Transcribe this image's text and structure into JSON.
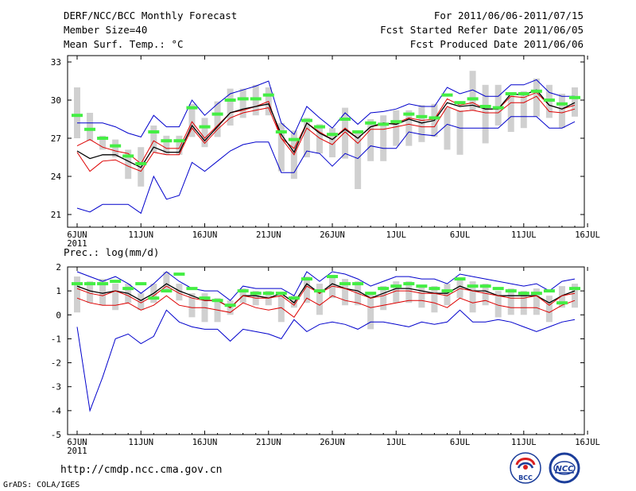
{
  "header": {
    "title": "DERF/NCC/BCC Monthly Forecast",
    "member_size": "Member Size=40",
    "variable": "Mean Surf. Temp.: °C",
    "period": "For 2011/06/06-2011/07/15",
    "start_date": "Fcst Started Refer Date 2011/06/05",
    "produced_date": "Fcst Produced Date 2011/06/06"
  },
  "footer": {
    "url": "http://cmdp.ncc.cma.gov.cn",
    "credit": "GrADS: COLA/IGES",
    "logo_bcc_text": "BCC",
    "logo_ncc_text": "NCC"
  },
  "colors": {
    "ensemble_range": "#0000cc",
    "ensemble_mean": "#000000",
    "climatology": "#dd0000",
    "box": "#d0d0d0",
    "observation": "#44ee44",
    "frame": "#000000"
  },
  "chart_data": [
    {
      "type": "line",
      "title": "Mean Surf. Temp.: °C",
      "x_tick_labels": [
        "6JUN",
        "11JUN",
        "16JUN",
        "21JUN",
        "26JUN",
        "1JUL",
        "6JUL",
        "11JUL",
        "16JUL"
      ],
      "x_year_label": "2011",
      "y_tick_labels": [
        "21",
        "24",
        "27",
        "30",
        "33"
      ],
      "ylim": [
        20,
        33.5
      ],
      "days": 40,
      "series": [
        {
          "name": "max",
          "values": [
            28.2,
            28.2,
            28.2,
            27.9,
            27.4,
            27.1,
            28.8,
            27.9,
            27.9,
            30.0,
            28.8,
            29.7,
            30.5,
            30.8,
            31.1,
            31.5,
            28.2,
            27.3,
            29.5,
            28.6,
            27.8,
            29.0,
            28.1,
            29.0,
            29.1,
            29.3,
            29.7,
            29.5,
            29.5,
            31.0,
            30.5,
            30.8,
            30.3,
            30.3,
            31.2,
            31.2,
            31.6,
            30.6,
            30.3,
            30.3
          ]
        },
        {
          "name": "clim",
          "values": [
            26.4,
            26.9,
            26.3,
            26.0,
            25.8,
            25.0,
            26.8,
            26.2,
            26.2,
            28.3,
            27.0,
            28.0,
            29.0,
            29.2,
            29.5,
            29.9,
            27.0,
            26.2,
            28.2,
            27.5,
            26.9,
            27.8,
            27.0,
            27.9,
            28.1,
            28.2,
            28.6,
            28.4,
            28.5,
            30.1,
            29.6,
            29.8,
            29.3,
            29.3,
            30.3,
            30.2,
            30.6,
            29.6,
            29.3,
            29.6
          ]
        },
        {
          "name": "mean",
          "values": [
            26.0,
            25.4,
            25.7,
            25.7,
            25.2,
            24.7,
            26.3,
            25.9,
            25.9,
            28.0,
            26.8,
            27.9,
            29.0,
            29.3,
            29.5,
            29.7,
            27.3,
            25.9,
            28.2,
            27.4,
            26.9,
            27.7,
            27.0,
            27.9,
            28.2,
            28.1,
            28.5,
            28.2,
            28.4,
            29.8,
            29.5,
            29.6,
            29.3,
            29.3,
            30.5,
            30.4,
            30.8,
            29.6,
            29.3,
            29.8
          ]
        },
        {
          "name": "min",
          "values": [
            25.9,
            24.4,
            25.2,
            25.3,
            24.8,
            24.4,
            25.9,
            25.7,
            25.7,
            27.8,
            26.6,
            27.7,
            28.6,
            29.0,
            29.2,
            29.4,
            27.0,
            25.7,
            27.8,
            27.0,
            26.5,
            27.5,
            26.6,
            27.7,
            27.7,
            27.9,
            28.1,
            27.9,
            27.9,
            29.5,
            29.1,
            29.2,
            29.0,
            29.0,
            29.8,
            29.8,
            30.3,
            29.1,
            29.0,
            29.3
          ]
        },
        {
          "name": "lower",
          "values": [
            21.5,
            21.2,
            21.8,
            21.8,
            21.8,
            21.1,
            24.0,
            22.2,
            22.5,
            25.1,
            24.4,
            25.2,
            26.0,
            26.5,
            26.7,
            26.7,
            24.3,
            24.3,
            26.0,
            25.8,
            24.8,
            25.8,
            25.4,
            26.4,
            26.2,
            26.2,
            27.5,
            27.3,
            27.2,
            28.1,
            27.8,
            27.8,
            27.8,
            27.8,
            28.7,
            28.7,
            28.7,
            27.8,
            27.8,
            28.3
          ]
        }
      ],
      "boxes": [
        {
          "lo": 27.0,
          "hi": 31.0
        },
        {
          "lo": 26.8,
          "hi": 29.0
        },
        {
          "lo": 26.1,
          "hi": 27.2
        },
        {
          "lo": 25.5,
          "hi": 26.9
        },
        {
          "lo": 23.8,
          "hi": 26.1
        },
        {
          "lo": 23.2,
          "hi": 26.3
        },
        {
          "lo": 25.9,
          "hi": 28.0
        },
        {
          "lo": 25.7,
          "hi": 27.2
        },
        {
          "lo": 25.7,
          "hi": 27.2
        },
        {
          "lo": 27.1,
          "hi": 29.7
        },
        {
          "lo": 26.3,
          "hi": 28.6
        },
        {
          "lo": 27.1,
          "hi": 29.9
        },
        {
          "lo": 28.0,
          "hi": 30.9
        },
        {
          "lo": 28.6,
          "hi": 30.9
        },
        {
          "lo": 28.8,
          "hi": 31.2
        },
        {
          "lo": 28.8,
          "hi": 31.0
        },
        {
          "lo": 24.4,
          "hi": 28.2
        },
        {
          "lo": 23.8,
          "hi": 27.6
        },
        {
          "lo": 25.5,
          "hi": 28.6
        },
        {
          "lo": 25.8,
          "hi": 28.1
        },
        {
          "lo": 25.5,
          "hi": 27.8
        },
        {
          "lo": 25.4,
          "hi": 29.4
        },
        {
          "lo": 23.0,
          "hi": 27.4
        },
        {
          "lo": 25.2,
          "hi": 28.5
        },
        {
          "lo": 25.2,
          "hi": 28.8
        },
        {
          "lo": 26.4,
          "hi": 29.2
        },
        {
          "lo": 26.4,
          "hi": 29.2
        },
        {
          "lo": 26.7,
          "hi": 29.6
        },
        {
          "lo": 27.1,
          "hi": 29.7
        },
        {
          "lo": 26.1,
          "hi": 29.4
        },
        {
          "lo": 25.7,
          "hi": 29.2
        },
        {
          "lo": 29.2,
          "hi": 32.3
        },
        {
          "lo": 26.6,
          "hi": 31.2
        },
        {
          "lo": 28.0,
          "hi": 31.2
        },
        {
          "lo": 27.5,
          "hi": 30.6
        },
        {
          "lo": 27.8,
          "hi": 30.7
        },
        {
          "lo": 28.7,
          "hi": 31.7
        },
        {
          "lo": 28.6,
          "hi": 31.2
        },
        {
          "lo": 27.8,
          "hi": 30.5
        },
        {
          "lo": 28.7,
          "hi": 31.0
        }
      ],
      "observation": [
        28.8,
        27.7,
        27.0,
        26.4,
        25.6,
        25.0,
        27.5,
        26.8,
        26.8,
        29.4,
        27.9,
        28.9,
        30.0,
        30.1,
        30.1,
        30.4,
        27.5,
        26.9,
        28.4,
        27.9,
        27.3,
        28.5,
        27.5,
        28.2,
        28.1,
        28.3,
        28.9,
        28.7,
        28.6,
        30.4,
        29.8,
        30.1,
        29.5,
        29.4,
        30.5,
        30.5,
        30.7,
        30.0,
        29.7,
        30.2
      ]
    },
    {
      "type": "line",
      "title": "Prec.: log(mm/d)",
      "x_tick_labels": [
        "6JUN",
        "11JUN",
        "16JUN",
        "21JUN",
        "26JUN",
        "1JUL",
        "6JUL",
        "11JUL",
        "16JUL"
      ],
      "x_year_label": "2011",
      "y_tick_labels": [
        "-5",
        "-4",
        "-3",
        "-2",
        "-1",
        "0",
        "1",
        "2"
      ],
      "ylim": [
        -5,
        2
      ],
      "days": 40,
      "series": [
        {
          "name": "max",
          "values": [
            1.8,
            1.6,
            1.4,
            1.6,
            1.3,
            0.9,
            1.3,
            1.8,
            1.4,
            1.1,
            1.0,
            1.0,
            0.6,
            1.2,
            1.1,
            1.1,
            1.1,
            0.8,
            1.8,
            1.4,
            1.8,
            1.7,
            1.5,
            1.2,
            1.4,
            1.6,
            1.6,
            1.5,
            1.5,
            1.3,
            1.7,
            1.6,
            1.5,
            1.4,
            1.3,
            1.2,
            1.3,
            1.0,
            1.4,
            1.5
          ]
        },
        {
          "name": "mean",
          "values": [
            1.2,
            1.0,
            0.9,
            1.0,
            0.9,
            0.6,
            0.9,
            1.3,
            1.0,
            0.8,
            0.6,
            0.6,
            0.3,
            0.8,
            0.8,
            0.7,
            0.9,
            0.5,
            1.3,
            0.9,
            1.3,
            1.1,
            1.0,
            0.7,
            0.9,
            1.1,
            1.1,
            1.0,
            0.9,
            0.9,
            1.2,
            1.0,
            1.0,
            0.8,
            0.8,
            0.8,
            0.8,
            0.5,
            0.8,
            1.0
          ]
        },
        {
          "name": "clim",
          "values": [
            1.1,
            0.9,
            0.8,
            1.0,
            0.8,
            0.5,
            0.8,
            1.2,
            0.9,
            0.7,
            0.6,
            0.6,
            0.3,
            0.8,
            0.7,
            0.7,
            0.8,
            0.4,
            1.2,
            0.9,
            1.2,
            1.1,
            0.9,
            0.7,
            0.8,
            1.0,
            1.0,
            0.9,
            0.9,
            0.8,
            1.1,
            1.0,
            0.9,
            0.8,
            0.7,
            0.7,
            0.8,
            0.4,
            0.8,
            0.9
          ]
        },
        {
          "name": "min",
          "values": [
            0.7,
            0.5,
            0.4,
            0.4,
            0.5,
            0.2,
            0.4,
            0.8,
            0.4,
            0.3,
            0.3,
            0.2,
            0.1,
            0.5,
            0.3,
            0.2,
            0.3,
            -0.1,
            0.7,
            0.4,
            0.8,
            0.6,
            0.5,
            0.3,
            0.4,
            0.5,
            0.6,
            0.6,
            0.5,
            0.3,
            0.7,
            0.5,
            0.6,
            0.4,
            0.3,
            0.3,
            0.3,
            0.1,
            0.4,
            0.6
          ]
        },
        {
          "name": "lower",
          "values": [
            -0.5,
            -4.0,
            -2.6,
            -1.0,
            -0.8,
            -1.2,
            -0.9,
            0.2,
            -0.3,
            -0.5,
            -0.6,
            -0.6,
            -1.1,
            -0.6,
            -0.7,
            -0.8,
            -1.0,
            -0.2,
            -0.7,
            -0.4,
            -0.3,
            -0.4,
            -0.6,
            -0.3,
            -0.3,
            -0.4,
            -0.5,
            -0.3,
            -0.4,
            -0.3,
            0.2,
            -0.3,
            -0.3,
            -0.2,
            -0.3,
            -0.5,
            -0.7,
            -0.5,
            -0.3,
            -0.2
          ]
        }
      ],
      "boxes": [
        {
          "lo": 0.1,
          "hi": 1.6
        },
        {
          "lo": 0.5,
          "hi": 1.4
        },
        {
          "lo": 0.4,
          "hi": 1.5
        },
        {
          "lo": 0.2,
          "hi": 1.3
        },
        {
          "lo": 0.5,
          "hi": 1.3
        },
        {
          "lo": 0.2,
          "hi": 0.9
        },
        {
          "lo": 0.5,
          "hi": 1.3
        },
        {
          "lo": 1.0,
          "hi": 1.8
        },
        {
          "lo": 0.6,
          "hi": 1.3
        },
        {
          "lo": -0.1,
          "hi": 0.9
        },
        {
          "lo": -0.3,
          "hi": 0.9
        },
        {
          "lo": -0.3,
          "hi": 0.7
        },
        {
          "lo": 0.0,
          "hi": 0.6
        },
        {
          "lo": 0.5,
          "hi": 1.1
        },
        {
          "lo": 0.4,
          "hi": 1.0
        },
        {
          "lo": 0.4,
          "hi": 1.0
        },
        {
          "lo": -0.3,
          "hi": 0.9
        },
        {
          "lo": 0.3,
          "hi": 0.8
        },
        {
          "lo": 0.5,
          "hi": 1.6
        },
        {
          "lo": 0.0,
          "hi": 1.3
        },
        {
          "lo": 0.7,
          "hi": 1.6
        },
        {
          "lo": 0.4,
          "hi": 1.5
        },
        {
          "lo": 0.4,
          "hi": 1.4
        },
        {
          "lo": -0.6,
          "hi": 0.9
        },
        {
          "lo": 0.2,
          "hi": 1.2
        },
        {
          "lo": 0.5,
          "hi": 1.4
        },
        {
          "lo": 0.5,
          "hi": 1.4
        },
        {
          "lo": 0.3,
          "hi": 1.2
        },
        {
          "lo": 0.1,
          "hi": 1.2
        },
        {
          "lo": 0.4,
          "hi": 1.3
        },
        {
          "lo": 0.7,
          "hi": 1.5
        },
        {
          "lo": 0.1,
          "hi": 1.4
        },
        {
          "lo": 0.4,
          "hi": 1.3
        },
        {
          "lo": -0.1,
          "hi": 1.0
        },
        {
          "lo": 0.0,
          "hi": 1.1
        },
        {
          "lo": 0.0,
          "hi": 1.0
        },
        {
          "lo": 0.0,
          "hi": 1.1
        },
        {
          "lo": -0.3,
          "hi": 0.8
        },
        {
          "lo": 0.3,
          "hi": 1.2
        },
        {
          "lo": 0.3,
          "hi": 1.3
        }
      ],
      "observation": [
        1.3,
        1.3,
        1.3,
        1.4,
        1.1,
        1.3,
        0.7,
        1.0,
        1.7,
        1.1,
        0.7,
        0.6,
        0.4,
        1.0,
        0.9,
        0.9,
        0.9,
        0.7,
        1.5,
        1.0,
        1.6,
        1.3,
        1.3,
        0.9,
        1.1,
        1.2,
        1.3,
        1.2,
        1.1,
        1.0,
        1.5,
        1.2,
        1.2,
        1.1,
        1.0,
        0.9,
        0.9,
        1.0,
        0.5,
        1.1
      ]
    }
  ]
}
